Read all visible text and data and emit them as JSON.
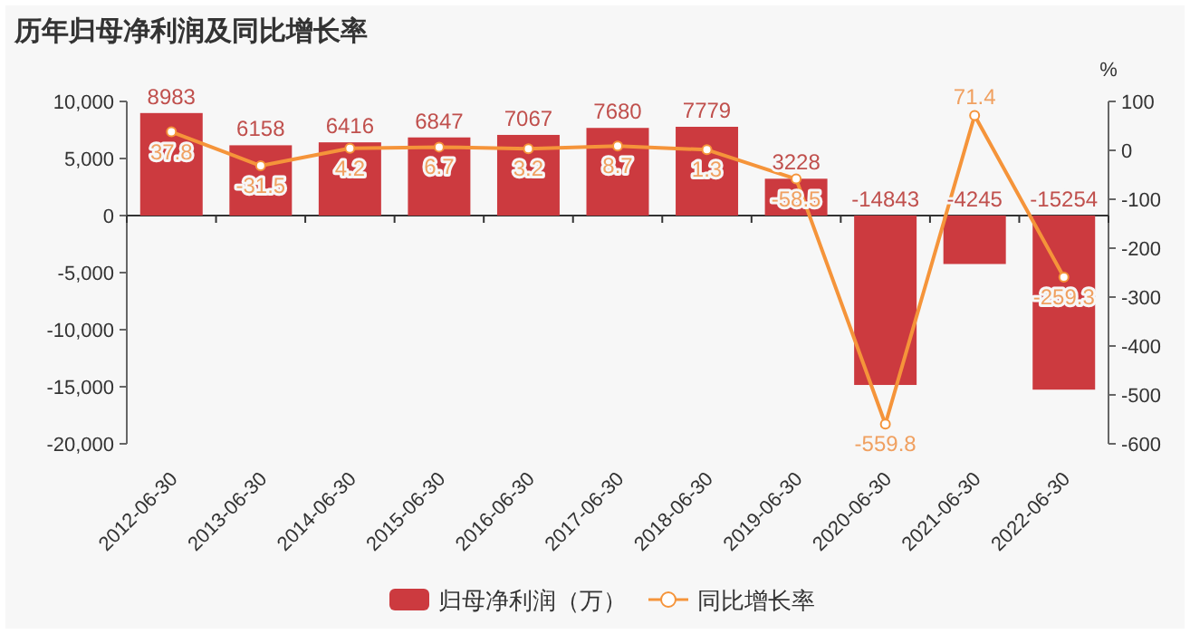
{
  "chart_data": {
    "type": "bar",
    "title": "历年归母净利润及同比增长率",
    "y2label": "%",
    "categories": [
      "2012-06-30",
      "2013-06-30",
      "2014-06-30",
      "2015-06-30",
      "2016-06-30",
      "2017-06-30",
      "2018-06-30",
      "2019-06-30",
      "2020-06-30",
      "2021-06-30",
      "2022-06-30"
    ],
    "series": [
      {
        "name": "归母净利润（万）",
        "color": "#cc3a3f",
        "values": [
          8983,
          6158,
          6416,
          6847,
          7067,
          7680,
          7779,
          3228,
          -14843,
          -4245,
          -15254
        ]
      },
      {
        "name": "同比增长率",
        "type": "line",
        "axis": "y2",
        "color": "#f5943a",
        "marker": "circle",
        "values": [
          37.8,
          -31.5,
          4.2,
          6.7,
          3.2,
          8.7,
          1.3,
          -58.5,
          -559.8,
          71.4,
          -259.3
        ]
      }
    ],
    "ylim": [
      -20000,
      10000
    ],
    "yticks": [
      {
        "value": -20000,
        "label": "-20,000"
      },
      {
        "value": -15000,
        "label": "-15,000"
      },
      {
        "value": -10000,
        "label": "-10,000"
      },
      {
        "value": -5000,
        "label": "-5,000"
      },
      0,
      {
        "value": 5000,
        "label": "5,000"
      },
      {
        "value": 10000,
        "label": "10,000"
      }
    ],
    "y2lim": [
      -600,
      100
    ],
    "y2ticks": [
      -600,
      -500,
      -400,
      -300,
      -200,
      -100,
      0,
      100
    ],
    "data_labels": true,
    "legend": "bottom"
  }
}
